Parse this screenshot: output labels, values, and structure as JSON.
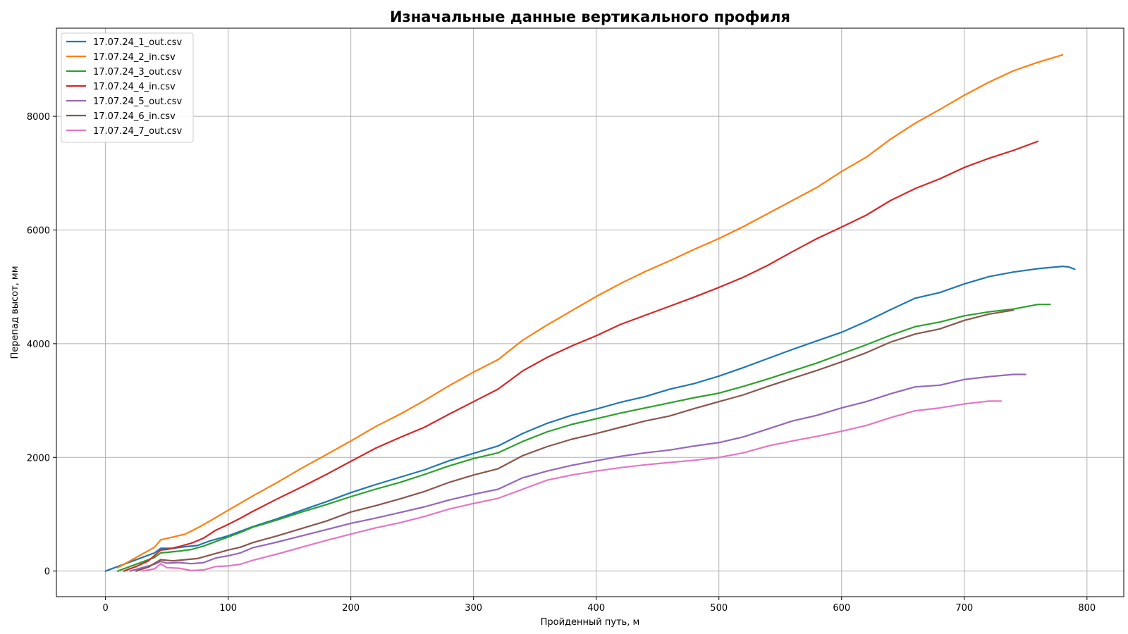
{
  "chart_data": {
    "type": "line",
    "title": "Изначальные данные вертикального профиля",
    "xlabel": "Пройденный путь, м",
    "ylabel": "Перепад высот, мм",
    "xlim": [
      -40,
      830
    ],
    "ylim": [
      -450,
      9550
    ],
    "xticks": [
      0,
      100,
      200,
      300,
      400,
      500,
      600,
      700,
      800
    ],
    "yticks": [
      0,
      2000,
      4000,
      6000,
      8000
    ],
    "grid": true,
    "legend_position": "top-left",
    "series": [
      {
        "name": "17.07.24_1_out.csv",
        "color": "#1f77b4",
        "points": [
          [
            0,
            0
          ],
          [
            10,
            80
          ],
          [
            20,
            160
          ],
          [
            30,
            240
          ],
          [
            40,
            320
          ],
          [
            45,
            400
          ],
          [
            55,
            400
          ],
          [
            65,
            430
          ],
          [
            75,
            450
          ],
          [
            85,
            530
          ],
          [
            100,
            620
          ],
          [
            110,
            700
          ],
          [
            120,
            780
          ],
          [
            140,
            920
          ],
          [
            160,
            1070
          ],
          [
            180,
            1220
          ],
          [
            200,
            1380
          ],
          [
            220,
            1520
          ],
          [
            240,
            1650
          ],
          [
            260,
            1780
          ],
          [
            280,
            1940
          ],
          [
            300,
            2070
          ],
          [
            320,
            2200
          ],
          [
            340,
            2420
          ],
          [
            360,
            2600
          ],
          [
            380,
            2740
          ],
          [
            400,
            2850
          ],
          [
            420,
            2970
          ],
          [
            440,
            3070
          ],
          [
            460,
            3200
          ],
          [
            480,
            3300
          ],
          [
            500,
            3430
          ],
          [
            520,
            3580
          ],
          [
            540,
            3740
          ],
          [
            560,
            3900
          ],
          [
            580,
            4050
          ],
          [
            600,
            4200
          ],
          [
            620,
            4390
          ],
          [
            640,
            4600
          ],
          [
            660,
            4800
          ],
          [
            680,
            4900
          ],
          [
            700,
            5050
          ],
          [
            720,
            5180
          ],
          [
            740,
            5260
          ],
          [
            760,
            5320
          ],
          [
            780,
            5360
          ],
          [
            785,
            5350
          ],
          [
            790,
            5310
          ]
        ]
      },
      {
        "name": "17.07.24_2_in.csv",
        "color": "#ff7f0e",
        "points": [
          [
            10,
            60
          ],
          [
            20,
            180
          ],
          [
            30,
            300
          ],
          [
            40,
            420
          ],
          [
            45,
            550
          ],
          [
            55,
            600
          ],
          [
            65,
            650
          ],
          [
            75,
            760
          ],
          [
            85,
            880
          ],
          [
            100,
            1070
          ],
          [
            120,
            1320
          ],
          [
            140,
            1560
          ],
          [
            160,
            1810
          ],
          [
            180,
            2050
          ],
          [
            200,
            2290
          ],
          [
            220,
            2540
          ],
          [
            240,
            2760
          ],
          [
            260,
            3000
          ],
          [
            280,
            3260
          ],
          [
            300,
            3500
          ],
          [
            320,
            3720
          ],
          [
            340,
            4060
          ],
          [
            360,
            4330
          ],
          [
            380,
            4580
          ],
          [
            400,
            4830
          ],
          [
            420,
            5060
          ],
          [
            440,
            5270
          ],
          [
            460,
            5460
          ],
          [
            480,
            5660
          ],
          [
            500,
            5850
          ],
          [
            520,
            6060
          ],
          [
            540,
            6290
          ],
          [
            560,
            6520
          ],
          [
            580,
            6750
          ],
          [
            600,
            7030
          ],
          [
            620,
            7280
          ],
          [
            640,
            7600
          ],
          [
            660,
            7880
          ],
          [
            680,
            8120
          ],
          [
            700,
            8370
          ],
          [
            720,
            8600
          ],
          [
            740,
            8800
          ],
          [
            760,
            8950
          ],
          [
            780,
            9080
          ]
        ]
      },
      {
        "name": "17.07.24_3_out.csv",
        "color": "#2ca02c",
        "points": [
          [
            10,
            0
          ],
          [
            20,
            80
          ],
          [
            30,
            160
          ],
          [
            40,
            240
          ],
          [
            45,
            320
          ],
          [
            50,
            330
          ],
          [
            60,
            350
          ],
          [
            70,
            380
          ],
          [
            80,
            440
          ],
          [
            90,
            520
          ],
          [
            100,
            600
          ],
          [
            110,
            680
          ],
          [
            120,
            770
          ],
          [
            140,
            900
          ],
          [
            160,
            1040
          ],
          [
            180,
            1170
          ],
          [
            200,
            1310
          ],
          [
            220,
            1440
          ],
          [
            240,
            1560
          ],
          [
            260,
            1700
          ],
          [
            280,
            1850
          ],
          [
            300,
            1980
          ],
          [
            320,
            2080
          ],
          [
            340,
            2280
          ],
          [
            360,
            2450
          ],
          [
            380,
            2580
          ],
          [
            400,
            2680
          ],
          [
            420,
            2780
          ],
          [
            440,
            2870
          ],
          [
            460,
            2960
          ],
          [
            480,
            3050
          ],
          [
            500,
            3130
          ],
          [
            520,
            3250
          ],
          [
            540,
            3380
          ],
          [
            560,
            3520
          ],
          [
            580,
            3660
          ],
          [
            600,
            3820
          ],
          [
            620,
            3980
          ],
          [
            640,
            4150
          ],
          [
            660,
            4300
          ],
          [
            680,
            4380
          ],
          [
            700,
            4490
          ],
          [
            720,
            4560
          ],
          [
            740,
            4610
          ],
          [
            760,
            4690
          ],
          [
            770,
            4690
          ]
        ]
      },
      {
        "name": "17.07.24_4_in.csv",
        "color": "#d62728",
        "points": [
          [
            15,
            0
          ],
          [
            25,
            80
          ],
          [
            35,
            180
          ],
          [
            45,
            370
          ],
          [
            50,
            380
          ],
          [
            60,
            430
          ],
          [
            70,
            490
          ],
          [
            80,
            580
          ],
          [
            90,
            720
          ],
          [
            100,
            820
          ],
          [
            110,
            930
          ],
          [
            120,
            1050
          ],
          [
            140,
            1270
          ],
          [
            160,
            1480
          ],
          [
            180,
            1700
          ],
          [
            200,
            1930
          ],
          [
            220,
            2160
          ],
          [
            240,
            2350
          ],
          [
            260,
            2530
          ],
          [
            280,
            2760
          ],
          [
            300,
            2980
          ],
          [
            320,
            3200
          ],
          [
            340,
            3520
          ],
          [
            360,
            3760
          ],
          [
            380,
            3960
          ],
          [
            400,
            4140
          ],
          [
            420,
            4340
          ],
          [
            440,
            4500
          ],
          [
            460,
            4660
          ],
          [
            480,
            4820
          ],
          [
            500,
            4990
          ],
          [
            520,
            5170
          ],
          [
            540,
            5380
          ],
          [
            560,
            5620
          ],
          [
            580,
            5850
          ],
          [
            600,
            6050
          ],
          [
            620,
            6260
          ],
          [
            640,
            6520
          ],
          [
            660,
            6730
          ],
          [
            680,
            6900
          ],
          [
            700,
            7100
          ],
          [
            720,
            7260
          ],
          [
            740,
            7400
          ],
          [
            760,
            7560
          ]
        ]
      },
      {
        "name": "17.07.24_5_out.csv",
        "color": "#9467bd",
        "points": [
          [
            20,
            0
          ],
          [
            30,
            60
          ],
          [
            40,
            120
          ],
          [
            45,
            170
          ],
          [
            50,
            140
          ],
          [
            60,
            150
          ],
          [
            70,
            130
          ],
          [
            80,
            150
          ],
          [
            90,
            230
          ],
          [
            100,
            270
          ],
          [
            110,
            320
          ],
          [
            120,
            410
          ],
          [
            140,
            510
          ],
          [
            160,
            620
          ],
          [
            180,
            730
          ],
          [
            200,
            840
          ],
          [
            220,
            930
          ],
          [
            240,
            1030
          ],
          [
            260,
            1130
          ],
          [
            280,
            1250
          ],
          [
            300,
            1350
          ],
          [
            320,
            1440
          ],
          [
            340,
            1640
          ],
          [
            360,
            1760
          ],
          [
            380,
            1860
          ],
          [
            400,
            1940
          ],
          [
            420,
            2020
          ],
          [
            440,
            2080
          ],
          [
            460,
            2130
          ],
          [
            480,
            2200
          ],
          [
            500,
            2260
          ],
          [
            520,
            2360
          ],
          [
            540,
            2500
          ],
          [
            560,
            2640
          ],
          [
            580,
            2740
          ],
          [
            600,
            2870
          ],
          [
            620,
            2980
          ],
          [
            640,
            3120
          ],
          [
            660,
            3240
          ],
          [
            680,
            3270
          ],
          [
            700,
            3370
          ],
          [
            720,
            3420
          ],
          [
            740,
            3460
          ],
          [
            750,
            3460
          ]
        ]
      },
      {
        "name": "17.07.24_6_in.csv",
        "color": "#8c564b",
        "points": [
          [
            25,
            0
          ],
          [
            35,
            70
          ],
          [
            45,
            200
          ],
          [
            55,
            180
          ],
          [
            65,
            200
          ],
          [
            75,
            220
          ],
          [
            85,
            280
          ],
          [
            100,
            370
          ],
          [
            110,
            420
          ],
          [
            120,
            500
          ],
          [
            140,
            620
          ],
          [
            160,
            750
          ],
          [
            180,
            880
          ],
          [
            200,
            1040
          ],
          [
            220,
            1150
          ],
          [
            240,
            1270
          ],
          [
            260,
            1400
          ],
          [
            280,
            1560
          ],
          [
            300,
            1690
          ],
          [
            320,
            1800
          ],
          [
            340,
            2030
          ],
          [
            360,
            2190
          ],
          [
            380,
            2320
          ],
          [
            400,
            2420
          ],
          [
            420,
            2530
          ],
          [
            440,
            2640
          ],
          [
            460,
            2730
          ],
          [
            480,
            2860
          ],
          [
            500,
            2980
          ],
          [
            520,
            3100
          ],
          [
            540,
            3250
          ],
          [
            560,
            3390
          ],
          [
            580,
            3530
          ],
          [
            600,
            3680
          ],
          [
            620,
            3840
          ],
          [
            640,
            4030
          ],
          [
            660,
            4170
          ],
          [
            680,
            4260
          ],
          [
            700,
            4410
          ],
          [
            720,
            4520
          ],
          [
            740,
            4590
          ]
        ]
      },
      {
        "name": "17.07.24_7_out.csv",
        "color": "#e377c2",
        "points": [
          [
            30,
            0
          ],
          [
            40,
            40
          ],
          [
            45,
            130
          ],
          [
            50,
            60
          ],
          [
            60,
            50
          ],
          [
            70,
            10
          ],
          [
            80,
            20
          ],
          [
            90,
            80
          ],
          [
            100,
            90
          ],
          [
            110,
            120
          ],
          [
            120,
            190
          ],
          [
            140,
            300
          ],
          [
            160,
            420
          ],
          [
            180,
            540
          ],
          [
            200,
            650
          ],
          [
            220,
            760
          ],
          [
            240,
            850
          ],
          [
            260,
            960
          ],
          [
            280,
            1090
          ],
          [
            300,
            1190
          ],
          [
            320,
            1280
          ],
          [
            340,
            1440
          ],
          [
            360,
            1600
          ],
          [
            380,
            1690
          ],
          [
            400,
            1760
          ],
          [
            420,
            1820
          ],
          [
            440,
            1870
          ],
          [
            460,
            1910
          ],
          [
            480,
            1950
          ],
          [
            500,
            2000
          ],
          [
            520,
            2080
          ],
          [
            540,
            2200
          ],
          [
            560,
            2290
          ],
          [
            580,
            2370
          ],
          [
            600,
            2460
          ],
          [
            620,
            2560
          ],
          [
            640,
            2700
          ],
          [
            660,
            2820
          ],
          [
            680,
            2870
          ],
          [
            700,
            2940
          ],
          [
            720,
            2990
          ],
          [
            730,
            2990
          ]
        ]
      }
    ]
  }
}
